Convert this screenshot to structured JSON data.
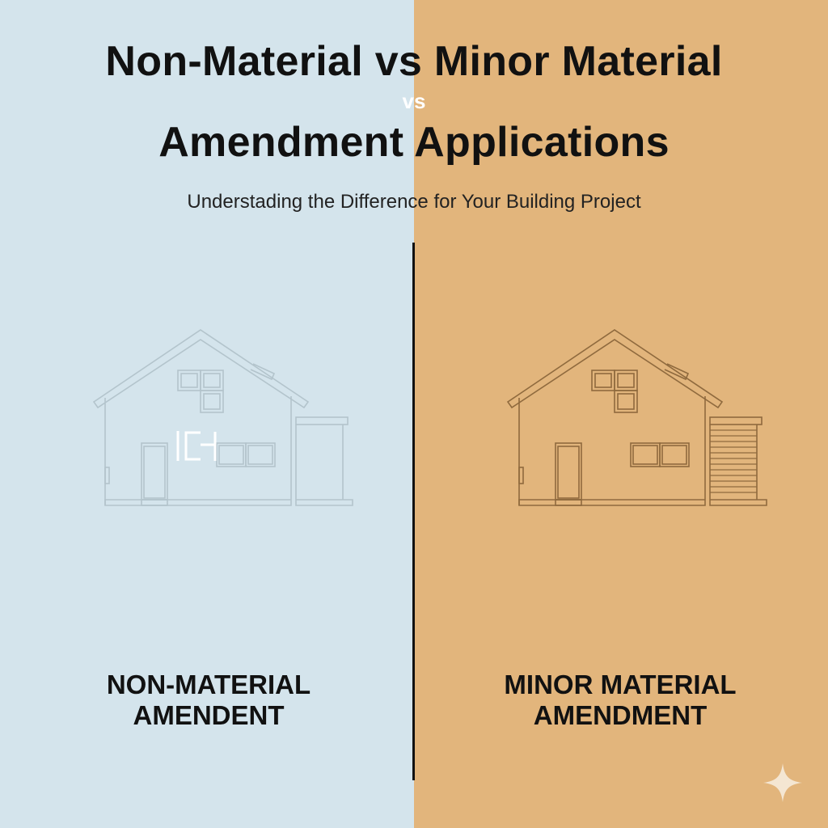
{
  "title": {
    "line1": "Non-Material vs Minor Material",
    "line2": "Amendment Applications",
    "vs_overlay": "vs"
  },
  "subtitle": "Understading the Difference for Your Building Project",
  "left": {
    "label_line1": "NON-MATERIAL",
    "label_line2": "AMENDENT",
    "background": "#d4e4ec",
    "icon": "house-outline-icon",
    "logo_mark": "ICH"
  },
  "right": {
    "label_line1": "MINOR MATERIAL",
    "label_line2": "AMENDMENT",
    "background": "#e2b57c",
    "icon": "house-outline-with-garage-icon"
  },
  "colors": {
    "divider": "#111111",
    "text": "#111111"
  }
}
